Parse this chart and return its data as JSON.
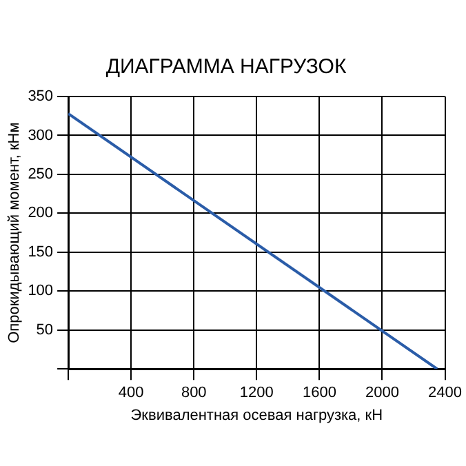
{
  "chart_data": {
    "type": "line",
    "title": "ДИАГРАММА НАГРУЗОК",
    "xlabel": "Эквивалентная осевая нагрузка, кН",
    "ylabel": "Опрокидывающий момент, кНм",
    "x": [
      0,
      2350
    ],
    "series": [
      {
        "color": "#2a5ca8",
        "values": [
          328,
          0
        ]
      }
    ],
    "xlim": [
      0,
      2400
    ],
    "ylim": [
      0,
      350
    ],
    "xticks": [
      {
        "value": 0,
        "label": null
      },
      400,
      800,
      1200,
      1600,
      2000,
      2400
    ],
    "yticks": [
      {
        "value": 0,
        "label": null
      },
      50,
      100,
      150,
      200,
      250,
      300,
      350
    ],
    "grid": true,
    "legend": false,
    "marker": "none",
    "line_style": "solid"
  }
}
